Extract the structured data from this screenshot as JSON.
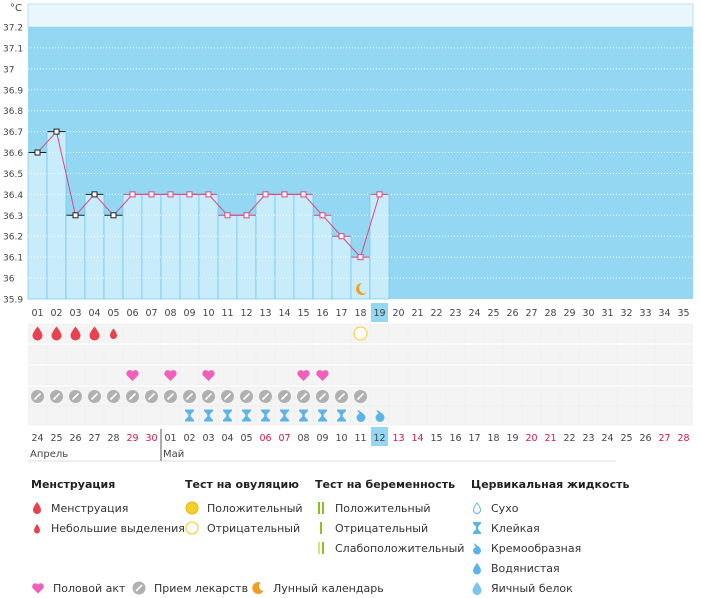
{
  "chart_data": {
    "type": "line",
    "y_unit_label": "°C",
    "ylim": [
      35.9,
      37.2
    ],
    "yticks": [
      "37.2",
      "37.1",
      "37",
      "36.9",
      "36.8",
      "36.7",
      "36.6",
      "36.5",
      "36.4",
      "36.3",
      "36.2",
      "36.1",
      "36",
      "35.9"
    ],
    "cycle_days": [
      "01",
      "02",
      "03",
      "04",
      "05",
      "06",
      "07",
      "08",
      "09",
      "10",
      "11",
      "12",
      "13",
      "14",
      "15",
      "16",
      "17",
      "18",
      "19",
      "20",
      "21",
      "22",
      "23",
      "24",
      "25",
      "26",
      "27",
      "28",
      "29",
      "30",
      "31",
      "32",
      "33",
      "34",
      "35"
    ],
    "current_day": "19",
    "temperatures": [
      36.6,
      36.7,
      36.3,
      36.4,
      36.3,
      36.4,
      36.4,
      36.4,
      36.4,
      36.4,
      36.3,
      36.3,
      36.4,
      36.4,
      36.4,
      36.3,
      36.2,
      36.1,
      36.4
    ],
    "marker_style": [
      "black",
      "black",
      "black",
      "black",
      "black",
      "pink",
      "pink",
      "pink",
      "pink",
      "pink",
      "pink",
      "pink",
      "pink",
      "pink",
      "pink",
      "pink",
      "pink",
      "pink",
      "pink"
    ],
    "calendar_dates": [
      "24",
      "25",
      "26",
      "27",
      "28",
      "29",
      "30",
      "01",
      "02",
      "03",
      "04",
      "05",
      "06",
      "07",
      "08",
      "09",
      "10",
      "11",
      "12",
      "13",
      "14",
      "15",
      "16",
      "17",
      "18",
      "19",
      "20",
      "21",
      "22",
      "23",
      "24",
      "25",
      "26",
      "27",
      "28"
    ],
    "weekend_dates": [
      5,
      6,
      12,
      13,
      19,
      20,
      26,
      27,
      33,
      34
    ],
    "current_date_index": 18,
    "months": [
      {
        "label": "Апрель",
        "start_index": 0
      },
      {
        "label": "Май",
        "start_index": 7
      }
    ],
    "moon_day_index": 17,
    "menstruation_days": [
      {
        "day_index": 0,
        "type": "full"
      },
      {
        "day_index": 1,
        "type": "full"
      },
      {
        "day_index": 2,
        "type": "full"
      },
      {
        "day_index": 3,
        "type": "full"
      },
      {
        "day_index": 4,
        "type": "light"
      }
    ],
    "ovulation_test_days": [
      {
        "day_index": 17,
        "result": "negative"
      }
    ],
    "intercourse_days": [
      5,
      7,
      9,
      14,
      15
    ],
    "medication_days": [
      0,
      1,
      2,
      3,
      4,
      5,
      6,
      7,
      8,
      9,
      10,
      11,
      12,
      13,
      14,
      15,
      16,
      17
    ],
    "cervical_fluid_days": [
      {
        "day_index": 8,
        "type": "sticky"
      },
      {
        "day_index": 9,
        "type": "sticky"
      },
      {
        "day_index": 10,
        "type": "sticky"
      },
      {
        "day_index": 11,
        "type": "sticky"
      },
      {
        "day_index": 12,
        "type": "sticky"
      },
      {
        "day_index": 13,
        "type": "sticky"
      },
      {
        "day_index": 14,
        "type": "sticky"
      },
      {
        "day_index": 15,
        "type": "sticky"
      },
      {
        "day_index": 16,
        "type": "sticky"
      },
      {
        "day_index": 17,
        "type": "creamy"
      },
      {
        "day_index": 18,
        "type": "creamy"
      }
    ],
    "colors": {
      "chart_bg": "#93d7f2",
      "chart_top_bg": "#e9f7fd",
      "bar_fill": "#c9ecfb",
      "bar_stroke": "#5fbee8",
      "line": "#e0457b",
      "menstruation": "#e8414f",
      "heart": "#f060b8",
      "pill": "#b0b0b0",
      "moon": "#f0a020",
      "ovulation_positive": "#f7cf2a",
      "ovulation_negative": "#f3d44e",
      "pregnancy": "#8dbf24",
      "fluid": "#5cb4e6",
      "weekend": "#d6164e",
      "current_day_bg": "#93d7f2"
    }
  },
  "legend": {
    "menstruation": {
      "title": "Менструация",
      "items": [
        "Менструация",
        "Небольшие выделения"
      ]
    },
    "ovulation_test": {
      "title": "Тест на овуляцию",
      "items": [
        "Положительный",
        "Отрицательный"
      ]
    },
    "pregnancy_test": {
      "title": "Тест на беременность",
      "items": [
        "Положительный",
        "Отрицательный",
        "Слабоположительный"
      ]
    },
    "cervical_fluid": {
      "title": "Цервикальная жидкость",
      "items": [
        "Сухо",
        "Клейкая",
        "Кремообразная",
        "Водянистая",
        "Яичный белок"
      ]
    },
    "bottom": [
      "Половой акт",
      "Прием лекарств",
      "Лунный календарь"
    ]
  }
}
